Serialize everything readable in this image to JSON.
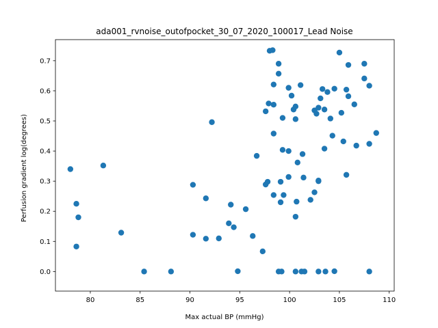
{
  "chart_data": {
    "type": "scatter",
    "title": "ada001_rvnoise_outofpocket_30_07_2020_100017_Lead Noise",
    "xlabel": "Max actual BP (mmHg)",
    "ylabel": "Perfusion gradient log(degrees)",
    "xlim": [
      76.5,
      110.5
    ],
    "ylim": [
      -0.065,
      0.77
    ],
    "xticks": [
      80,
      85,
      90,
      95,
      100,
      105,
      110
    ],
    "yticks": [
      0.0,
      0.1,
      0.2,
      0.3,
      0.4,
      0.5,
      0.6,
      0.7
    ],
    "xtick_labels": [
      "80",
      "85",
      "90",
      "95",
      "100",
      "105",
      "110"
    ],
    "ytick_labels": [
      "0.0",
      "0.1",
      "0.2",
      "0.3",
      "0.4",
      "0.5",
      "0.6",
      "0.7"
    ],
    "marker_color": "#1f77b4",
    "grid": false,
    "legend": null,
    "series": [
      {
        "points": [
          [
            78.0,
            0.34
          ],
          [
            78.6,
            0.225
          ],
          [
            78.6,
            0.083
          ],
          [
            78.8,
            0.18
          ],
          [
            81.3,
            0.352
          ],
          [
            83.1,
            0.129
          ],
          [
            85.4,
            0.0
          ],
          [
            88.1,
            0.0
          ],
          [
            90.3,
            0.288
          ],
          [
            90.3,
            0.122
          ],
          [
            91.6,
            0.243
          ],
          [
            91.6,
            0.109
          ],
          [
            92.2,
            0.496
          ],
          [
            92.9,
            0.11
          ],
          [
            93.9,
            0.16
          ],
          [
            94.1,
            0.222
          ],
          [
            94.4,
            0.147
          ],
          [
            94.8,
            0.001
          ],
          [
            95.6,
            0.207
          ],
          [
            96.3,
            0.118
          ],
          [
            96.7,
            0.384
          ],
          [
            97.3,
            0.067
          ],
          [
            97.6,
            0.532
          ],
          [
            97.6,
            0.289
          ],
          [
            97.8,
            0.298
          ],
          [
            97.9,
            0.558
          ],
          [
            98.0,
            0.733
          ],
          [
            98.3,
            0.735
          ],
          [
            98.4,
            0.621
          ],
          [
            98.4,
            0.554
          ],
          [
            98.4,
            0.458
          ],
          [
            98.4,
            0.254
          ],
          [
            98.9,
            0.69
          ],
          [
            98.9,
            0.657
          ],
          [
            98.9,
            0.0
          ],
          [
            99.1,
            0.298
          ],
          [
            99.1,
            0.23
          ],
          [
            99.2,
            0.0
          ],
          [
            99.3,
            0.51
          ],
          [
            99.3,
            0.404
          ],
          [
            99.4,
            0.254
          ],
          [
            99.9,
            0.61
          ],
          [
            99.9,
            0.4
          ],
          [
            99.9,
            0.314
          ],
          [
            100.2,
            0.584
          ],
          [
            100.4,
            0.538
          ],
          [
            100.6,
            0.548
          ],
          [
            100.6,
            0.506
          ],
          [
            100.6,
            0.182
          ],
          [
            100.6,
            0.0
          ],
          [
            100.7,
            0.232
          ],
          [
            100.8,
            0.362
          ],
          [
            101.1,
            0.619
          ],
          [
            101.2,
            0.0
          ],
          [
            101.3,
            0.39
          ],
          [
            101.4,
            0.312
          ],
          [
            101.5,
            0.0
          ],
          [
            102.1,
            0.238
          ],
          [
            102.5,
            0.535
          ],
          [
            102.5,
            0.263
          ],
          [
            102.7,
            0.524
          ],
          [
            102.9,
            0.544
          ],
          [
            102.9,
            0.302
          ],
          [
            102.9,
            0.3
          ],
          [
            102.9,
            0.0
          ],
          [
            103.1,
            0.575
          ],
          [
            103.3,
            0.606
          ],
          [
            103.5,
            0.538
          ],
          [
            103.5,
            0.408
          ],
          [
            103.6,
            0.0
          ],
          [
            103.8,
            0.596
          ],
          [
            104.1,
            0.508
          ],
          [
            104.3,
            0.451
          ],
          [
            104.5,
            0.607
          ],
          [
            104.5,
            0.001
          ],
          [
            105.0,
            0.727
          ],
          [
            105.2,
            0.527
          ],
          [
            105.4,
            0.432
          ],
          [
            105.7,
            0.604
          ],
          [
            105.7,
            0.321
          ],
          [
            105.9,
            0.582
          ],
          [
            105.9,
            0.686
          ],
          [
            106.5,
            0.555
          ],
          [
            106.7,
            0.418
          ],
          [
            107.5,
            0.69
          ],
          [
            107.5,
            0.641
          ],
          [
            108.0,
            0.617
          ],
          [
            108.0,
            0.424
          ],
          [
            108.0,
            0.0
          ],
          [
            108.7,
            0.46
          ]
        ]
      }
    ]
  }
}
